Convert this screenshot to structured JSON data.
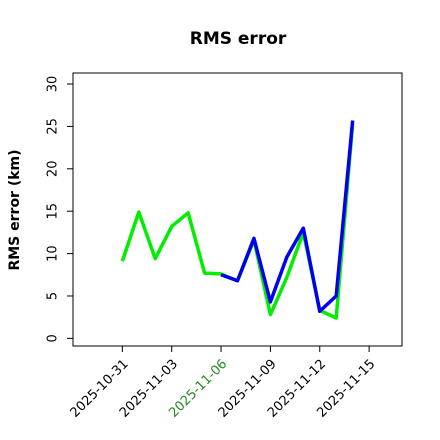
{
  "chart_data": {
    "type": "line",
    "title": "RMS error",
    "y_label": "RMS error (km)",
    "series": [
      {
        "color": "#00ee00",
        "x": [
          "2025-10-31",
          "2025-11-01",
          "2025-11-02",
          "2025-11-03",
          "2025-11-04",
          "2025-11-05",
          "2025-11-06",
          "2025-11-07",
          "2025-11-08",
          "2025-11-09",
          "2025-11-10",
          "2025-11-11",
          "2025-11-12",
          "2025-11-13",
          "2025-11-14"
        ],
        "values": [
          9.1,
          14.9,
          9.4,
          13.2,
          14.8,
          7.7,
          7.6,
          6.8,
          11.6,
          2.8,
          7.2,
          12.5,
          3.3,
          2.4,
          25.3
        ]
      },
      {
        "color": "#0000ee",
        "x": [
          "2025-11-06",
          "2025-11-07",
          "2025-11-08",
          "2025-11-09",
          "2025-11-10",
          "2025-11-11",
          "2025-11-12",
          "2025-11-13",
          "2025-11-14"
        ],
        "values": [
          7.5,
          6.8,
          11.8,
          4.3,
          9.6,
          13.0,
          3.2,
          5.0,
          25.7
        ]
      }
    ],
    "xlim": [
      "2025-10-28",
      "2025-11-17"
    ],
    "xticks": [
      "2025-10-31",
      "2025-11-03",
      "2025-11-06",
      "2025-11-09",
      "2025-11-12",
      "2025-11-15"
    ],
    "xtick_colors": [
      "#000000",
      "#000000",
      "#228b22",
      "#000000",
      "#000000",
      "#000000"
    ],
    "ylim": [
      -0.9,
      31.3
    ],
    "yticks": [
      0,
      5,
      10,
      15,
      20,
      25,
      30
    ]
  }
}
